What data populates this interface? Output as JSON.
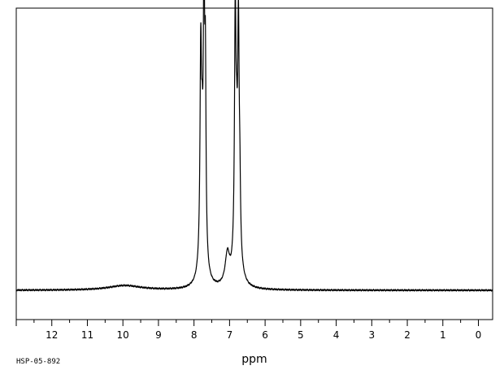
{
  "sample_id": "HSP-05-892",
  "chart_data": {
    "type": "line",
    "title": "",
    "xlabel": "ppm",
    "ylabel": "",
    "xlim": [
      13.0,
      -0.4
    ],
    "x_reversed": true,
    "grid": false,
    "legend": "none",
    "ticks": [
      {
        "value": 12,
        "label": "12"
      },
      {
        "value": 11,
        "label": "11"
      },
      {
        "value": 10,
        "label": "10"
      },
      {
        "value": 9,
        "label": "9"
      },
      {
        "value": 8,
        "label": "8"
      },
      {
        "value": 7,
        "label": "7"
      },
      {
        "value": 6,
        "label": "6"
      },
      {
        "value": 5,
        "label": "5"
      },
      {
        "value": 4,
        "label": "4"
      },
      {
        "value": 3,
        "label": "3"
      },
      {
        "value": 2,
        "label": "2"
      },
      {
        "value": 1,
        "label": "1"
      },
      {
        "value": 0,
        "label": "0"
      }
    ],
    "minor_tick_step": 0.5,
    "peaks": [
      {
        "ppm": 9.95,
        "height": 0.018,
        "width": 0.55
      },
      {
        "ppm": 7.81,
        "height": 0.78,
        "width": 0.025
      },
      {
        "ppm": 7.77,
        "height": 0.23,
        "width": 0.02
      },
      {
        "ppm": 7.72,
        "height": 1.0,
        "width": 0.02
      },
      {
        "ppm": 7.68,
        "height": 0.68,
        "width": 0.02
      },
      {
        "ppm": 7.75,
        "height": 0.2,
        "width": 0.09
      },
      {
        "ppm": 7.06,
        "height": 0.118,
        "width": 0.075
      },
      {
        "ppm": 6.84,
        "height": 0.91,
        "width": 0.025
      },
      {
        "ppm": 6.8,
        "height": 0.2,
        "width": 0.02
      },
      {
        "ppm": 6.75,
        "height": 0.81,
        "width": 0.025
      },
      {
        "ppm": 6.71,
        "height": 0.2,
        "width": 0.02
      },
      {
        "ppm": 6.78,
        "height": 0.2,
        "width": 0.09
      }
    ]
  }
}
